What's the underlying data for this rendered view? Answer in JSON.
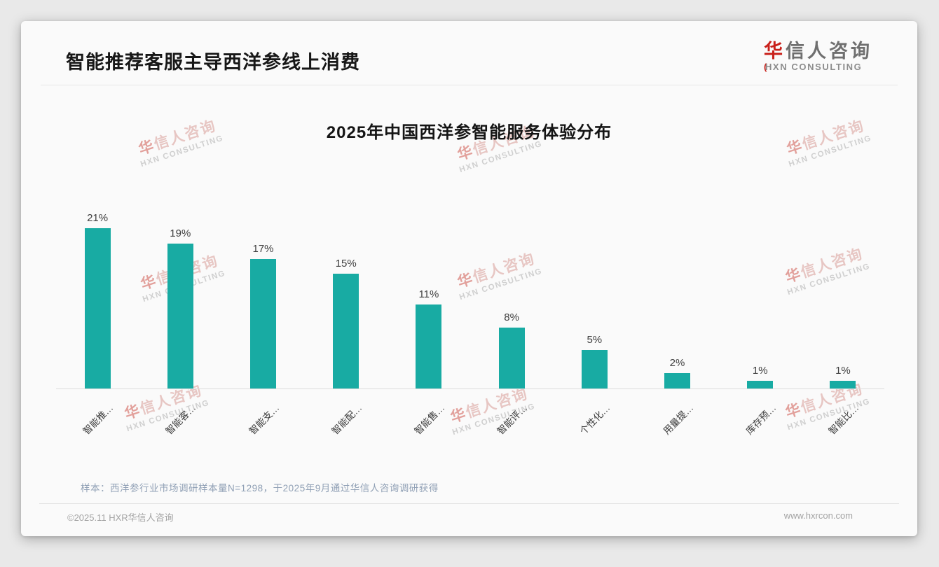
{
  "header": {
    "title": "智能推荐客服主导西洋参线上消费"
  },
  "logo": {
    "cn_first": "华",
    "cn_rest": "信人咨询",
    "en_accent": "(",
    "en": "HXN CONSULTING",
    "accent_color": "#c9201a"
  },
  "chart_data": {
    "type": "bar",
    "title": "2025年中国西洋参智能服务体验分布",
    "categories": [
      "智能推…",
      "智能客…",
      "智能支…",
      "智能配…",
      "智能售…",
      "智能评…",
      "个性化…",
      "用量提…",
      "库存预…",
      "智能比…"
    ],
    "values": [
      21,
      19,
      17,
      15,
      11,
      8,
      5,
      2,
      1,
      1
    ],
    "value_labels": [
      "21%",
      "19%",
      "17%",
      "15%",
      "11%",
      "8%",
      "5%",
      "2%",
      "1%",
      "1%"
    ],
    "unit": "%",
    "bar_color": "#18aba3",
    "xlabel": "",
    "ylabel": "",
    "ylim": [
      0,
      23
    ],
    "grid": false,
    "legend": "none",
    "x_label_rotation": -45
  },
  "watermark": {
    "line1_first": "华",
    "line1_rest": "信人咨询",
    "line2": "HXN CONSULTING"
  },
  "footnote": {
    "text": "样本：西洋参行业市场调研样本量N=1298，于2025年9月通过华信人咨询调研获得"
  },
  "footer": {
    "copyright": "©2025.11 HXR华信人咨询",
    "website": "www.hxrcon.com"
  }
}
